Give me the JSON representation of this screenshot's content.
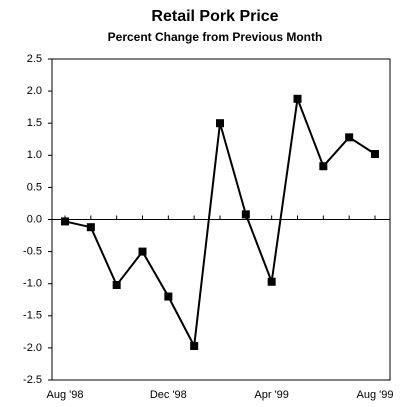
{
  "chart_data": {
    "type": "line",
    "title": "Retail Pork Price",
    "subtitle": "Percent Change from Previous Month",
    "categories": [
      "Aug '98",
      null,
      null,
      null,
      "Dec '98",
      null,
      null,
      null,
      "Apr '99",
      null,
      null,
      null,
      "Aug '99"
    ],
    "series": [
      {
        "name": "Retail Pork Price",
        "color": "#000000",
        "values": [
          -0.03,
          -0.12,
          -1.02,
          -0.5,
          -1.2,
          -1.97,
          1.5,
          0.08,
          -0.97,
          1.88,
          0.83,
          1.28,
          1.02
        ]
      }
    ],
    "ylim": [
      -2.5,
      2.5
    ],
    "yticks": [
      -2.5,
      {
        "value": -2,
        "label": "-2.0"
      },
      -1.5,
      {
        "value": -1,
        "label": "-1.0"
      },
      -0.5,
      {
        "value": 0,
        "label": "0.0"
      },
      0.5,
      {
        "value": 1,
        "label": "1.0"
      },
      1.5,
      {
        "value": 2,
        "label": "2.0"
      },
      2.5
    ],
    "grid": false
  }
}
